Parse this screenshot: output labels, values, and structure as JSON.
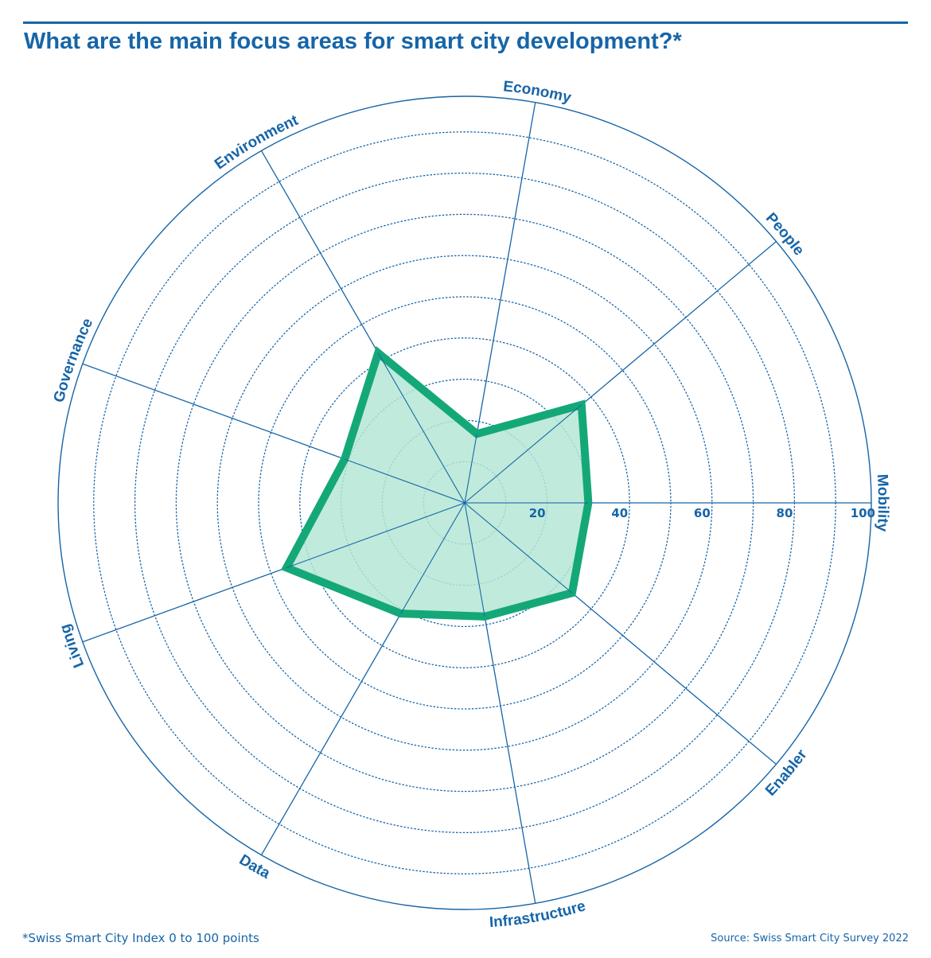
{
  "header": {
    "title": "What are the main focus areas for smart city development?*"
  },
  "footer": {
    "footnote": "*Swiss Smart City Index 0 to 100 points",
    "source": "Source: Swiss Smart City Survey 2022"
  },
  "colors": {
    "brand_blue": "#1665a8",
    "series_stroke": "#14a878",
    "series_fill": "#b5e6d5",
    "background": "#ffffff"
  },
  "chart_data": {
    "type": "radar",
    "title": "What are the main focus areas for smart city development?*",
    "axes": [
      "Mobility",
      "People",
      "Economy",
      "Environment",
      "Governance",
      "Living",
      "Data",
      "Infrastructure",
      "Enabler"
    ],
    "series": [
      {
        "values": [
          30,
          37,
          17,
          42,
          31,
          46,
          31,
          28,
          34
        ]
      }
    ],
    "range": [
      0,
      100
    ],
    "tick_values": [
      20,
      40,
      60,
      80,
      100
    ],
    "tick_labels": [
      "20",
      "40",
      "60",
      "80",
      "100"
    ],
    "gridline_step": 10,
    "gridlines": "dotted circles",
    "legend": "none"
  }
}
